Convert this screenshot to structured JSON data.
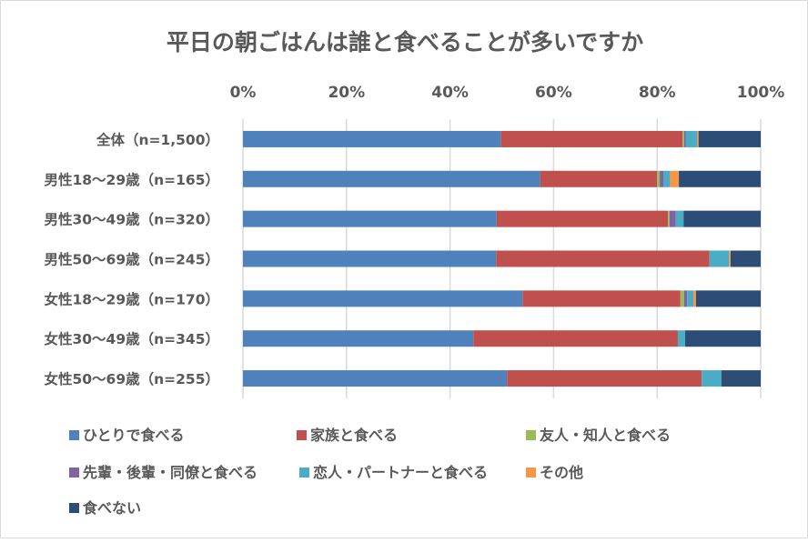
{
  "chart_data": {
    "type": "bar",
    "orientation": "horizontal",
    "stacked": "percent",
    "title": "平日の朝ごはんは誰と食べることが多いですか",
    "xlim": [
      0,
      100
    ],
    "xticks": [
      "0%",
      "20%",
      "40%",
      "60%",
      "80%",
      "100%"
    ],
    "x_axis_position": "top",
    "grid": true,
    "legend_position": "bottom",
    "categories": [
      "全体（n=1,500）",
      "男性18～29歳（n=165）",
      "男性30～49歳（n=320）",
      "男性50～69歳（n=245）",
      "女性18～29歳（n=170）",
      "女性30～49歳（n=345）",
      "女性50～69歳（n=255）"
    ],
    "series": [
      {
        "name": "ひとりで食べる",
        "color": "#4f81bd",
        "values": [
          49.8,
          57.4,
          49.0,
          48.9,
          54.0,
          44.5,
          51.0
        ]
      },
      {
        "name": "家族と食べる",
        "color": "#c0504d",
        "values": [
          35.1,
          22.6,
          33.1,
          41.2,
          30.5,
          39.5,
          37.6
        ]
      },
      {
        "name": "友人・知人と食べる",
        "color": "#9bbb59",
        "values": [
          0.3,
          0.5,
          0.3,
          0,
          0.7,
          0,
          0
        ]
      },
      {
        "name": "先輩・後輩・同僚と食べる",
        "color": "#8064a2",
        "values": [
          0.3,
          0.7,
          1.2,
          0,
          0.6,
          0,
          0
        ]
      },
      {
        "name": "恋人・パートナーと食べる",
        "color": "#4bacc6",
        "values": [
          2.2,
          1.3,
          1.5,
          3.8,
          1.2,
          1.4,
          3.8
        ]
      },
      {
        "name": "その他",
        "color": "#f79646",
        "values": [
          0.3,
          1.7,
          0,
          0.3,
          0.5,
          0,
          0
        ]
      },
      {
        "name": "食べない",
        "color": "#2c4d75",
        "values": [
          12.0,
          15.8,
          14.9,
          5.8,
          12.5,
          14.6,
          7.6
        ]
      }
    ]
  }
}
